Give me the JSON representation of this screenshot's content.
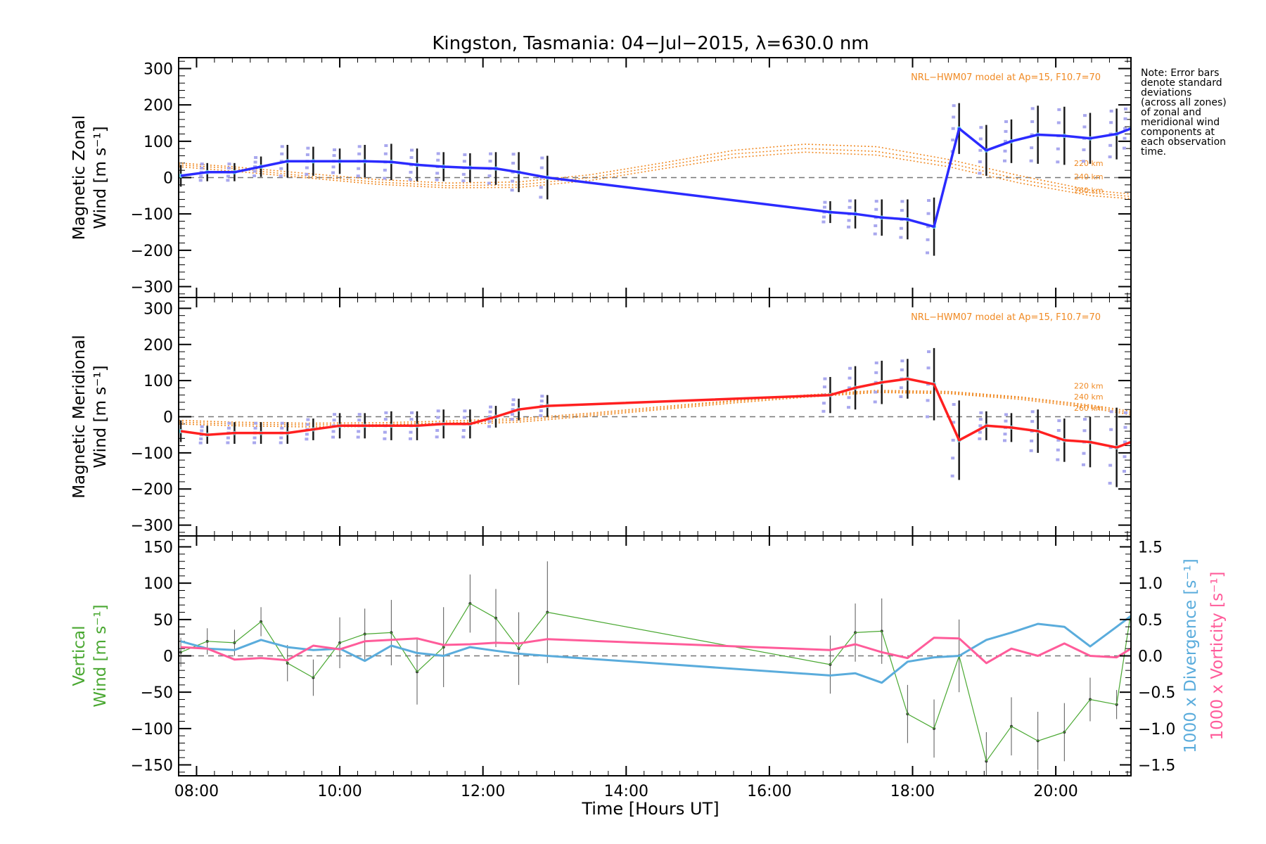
{
  "chart_data": {
    "type": "line",
    "title": "Kingston, Tasmania: 04−Jul−2015, λ=630.0 nm",
    "xlabel": "Time [Hours UT]",
    "x_tick_labels": [
      "08:00",
      "10:00",
      "12:00",
      "14:00",
      "16:00",
      "18:00",
      "20:00"
    ],
    "x_ticks": [
      8,
      10,
      12,
      14,
      16,
      18,
      20
    ],
    "xlim": [
      7.75,
      21.05
    ],
    "note": "Note: Error bars denote standard deviations (across all zones) of zonal and meridional wind components at each observation time.",
    "panels": [
      {
        "id": "zonal",
        "ylabel_line1": "Magnetic Zonal",
        "ylabel_line2": "Wind [m s⁻¹]",
        "ylim": [
          -330,
          330
        ],
        "y_ticks": [
          -300,
          -200,
          -100,
          0,
          100,
          200,
          300
        ],
        "model_label": "NRL−HWM07 model at Ap=15, F10.7=70",
        "model_alt_labels": [
          "220 km",
          "240 km",
          "260 km"
        ],
        "series": [
          {
            "color": "#2b2bff",
            "x": [
              7.78,
              8.15,
              8.53,
              8.9,
              9.27,
              9.63,
              10.0,
              10.35,
              10.72,
              11.08,
              11.45,
              11.82,
              12.18,
              12.5,
              12.9,
              16.85,
              17.2,
              17.57,
              17.93,
              18.3,
              18.65,
              19.03,
              19.38,
              19.75,
              20.12,
              20.48,
              20.85,
              21.05
            ],
            "y": [
              5,
              15,
              15,
              30,
              45,
              45,
              45,
              45,
              43,
              35,
              30,
              27,
              25,
              15,
              0,
              -95,
              -100,
              -110,
              -115,
              -135,
              135,
              75,
              100,
              118,
              115,
              108,
              120,
              135
            ],
            "err": [
              30,
              25,
              25,
              28,
              45,
              40,
              35,
              45,
              50,
              45,
              40,
              40,
              45,
              55,
              60,
              30,
              40,
              50,
              55,
              80,
              70,
              70,
              60,
              80,
              80,
              70,
              70,
              60
            ]
          }
        ],
        "model_curves": [
          {
            "name": "220 km",
            "x": [
              7.75,
              8.5,
              9.5,
              10.5,
              11.5,
              12.5,
              13.5,
              14.5,
              15.5,
              16.5,
              17.5,
              18.5,
              19.5,
              20.5,
              21.05
            ],
            "y": [
              40,
              30,
              12,
              -5,
              -15,
              -12,
              8,
              40,
              75,
              92,
              85,
              50,
              5,
              -35,
              -45
            ]
          },
          {
            "name": "240 km",
            "x": [
              7.75,
              8.5,
              9.5,
              10.5,
              11.5,
              12.5,
              13.5,
              14.5,
              15.5,
              16.5,
              17.5,
              18.5,
              19.5,
              20.5,
              21.05
            ],
            "y": [
              35,
              25,
              5,
              -12,
              -22,
              -20,
              0,
              32,
              65,
              80,
              72,
              40,
              -5,
              -42,
              -52
            ]
          },
          {
            "name": "260 km",
            "x": [
              7.75,
              8.5,
              9.5,
              10.5,
              11.5,
              12.5,
              13.5,
              14.5,
              15.5,
              16.5,
              17.5,
              18.5,
              19.5,
              20.5,
              21.05
            ],
            "y": [
              30,
              18,
              0,
              -18,
              -28,
              -27,
              -8,
              24,
              55,
              70,
              62,
              30,
              -15,
              -50,
              -58
            ]
          }
        ]
      },
      {
        "id": "meridional",
        "ylabel_line1": "Magnetic Meridional",
        "ylabel_line2": "Wind [m s⁻¹]",
        "ylim": [
          -330,
          330
        ],
        "y_ticks": [
          -300,
          -200,
          -100,
          0,
          100,
          200,
          300
        ],
        "model_label": "NRL−HWM07 model at Ap=15, F10.7=70",
        "model_alt_labels": [
          "220 km",
          "240 km",
          "260 km"
        ],
        "series": [
          {
            "color": "#ff2020",
            "x": [
              7.78,
              8.15,
              8.53,
              8.9,
              9.27,
              9.63,
              10.0,
              10.35,
              10.72,
              11.08,
              11.45,
              11.82,
              12.18,
              12.5,
              12.9,
              16.85,
              17.2,
              17.57,
              17.93,
              18.3,
              18.65,
              19.03,
              19.38,
              19.75,
              20.12,
              20.48,
              20.85,
              21.05
            ],
            "y": [
              -40,
              -50,
              -45,
              -45,
              -45,
              -35,
              -25,
              -25,
              -25,
              -25,
              -20,
              -20,
              0,
              20,
              30,
              60,
              80,
              95,
              105,
              90,
              -65,
              -25,
              -30,
              -40,
              -65,
              -70,
              -85,
              -70
            ],
            "err": [
              30,
              25,
              30,
              30,
              30,
              30,
              35,
              35,
              40,
              40,
              40,
              40,
              30,
              30,
              30,
              50,
              60,
              60,
              55,
              100,
              110,
              40,
              40,
              60,
              60,
              70,
              110,
              90
            ]
          }
        ],
        "model_curves": [
          {
            "name": "220 km",
            "x": [
              7.75,
              8.5,
              9.5,
              10.5,
              11.5,
              12.5,
              13.5,
              14.5,
              15.5,
              16.5,
              17.5,
              18.5,
              19.5,
              20.5,
              21.05
            ],
            "y": [
              -10,
              -15,
              -18,
              -17,
              -12,
              -5,
              10,
              28,
              45,
              60,
              73,
              70,
              55,
              32,
              15
            ]
          },
          {
            "name": "240 km",
            "x": [
              7.75,
              8.5,
              9.5,
              10.5,
              11.5,
              12.5,
              13.5,
              14.5,
              15.5,
              16.5,
              17.5,
              18.5,
              19.5,
              20.5,
              21.05
            ],
            "y": [
              -15,
              -20,
              -23,
              -22,
              -17,
              -10,
              6,
              24,
              42,
              57,
              70,
              67,
              52,
              28,
              10
            ]
          },
          {
            "name": "260 km",
            "x": [
              7.75,
              8.5,
              9.5,
              10.5,
              11.5,
              12.5,
              13.5,
              14.5,
              15.5,
              16.5,
              17.5,
              18.5,
              19.5,
              20.5,
              21.05
            ],
            "y": [
              -20,
              -25,
              -28,
              -27,
              -22,
              -15,
              2,
              20,
              38,
              54,
              67,
              64,
              48,
              24,
              5
            ]
          }
        ]
      },
      {
        "id": "vertical",
        "ylabel_line1": "Vertical",
        "ylabel_line2": "Wind [m s⁻¹]",
        "ylim": [
          -165,
          165
        ],
        "y_ticks": [
          -150,
          -100,
          -50,
          0,
          50,
          100,
          150
        ],
        "y2_label_div": "1000 x Divergence [s⁻¹]",
        "y2_label_vort": "1000 x Vorticity [s⁻¹]",
        "y2_lim": [
          -1.65,
          1.65
        ],
        "y2_ticks": [
          -1.5,
          -1.0,
          -0.5,
          0.0,
          0.5,
          1.0,
          1.5
        ],
        "series": [
          {
            "name": "vertical",
            "color": "#4aa832",
            "x": [
              7.78,
              8.15,
              8.53,
              8.9,
              9.27,
              9.63,
              10.0,
              10.35,
              10.72,
              11.08,
              11.45,
              11.82,
              12.18,
              12.5,
              12.9,
              16.85,
              17.2,
              17.57,
              17.93,
              18.3,
              18.65,
              19.03,
              19.38,
              19.75,
              20.12,
              20.48,
              20.85,
              21.05
            ],
            "y": [
              5,
              20,
              18,
              47,
              -10,
              -30,
              18,
              30,
              32,
              -22,
              12,
              72,
              52,
              10,
              60,
              -12,
              32,
              34,
              -80,
              -100,
              0,
              -145,
              -97,
              -117,
              -105,
              -60,
              -67,
              60
            ],
            "err": [
              20,
              18,
              18,
              20,
              25,
              25,
              35,
              35,
              45,
              45,
              55,
              40,
              40,
              50,
              70,
              40,
              40,
              45,
              40,
              40,
              50,
              40,
              40,
              40,
              40,
              30,
              20,
              30
            ]
          },
          {
            "name": "divergence",
            "color": "#5aacdc",
            "axis": "y2",
            "x": [
              7.78,
              8.15,
              8.53,
              8.9,
              9.27,
              9.63,
              10.0,
              10.35,
              10.72,
              11.08,
              11.45,
              11.82,
              12.18,
              12.5,
              12.9,
              16.85,
              17.2,
              17.57,
              17.93,
              18.3,
              18.65,
              19.03,
              19.38,
              19.75,
              20.12,
              20.48,
              20.85,
              21.05
            ],
            "y": [
              0.2,
              0.1,
              0.08,
              0.22,
              0.12,
              0.08,
              0.1,
              -0.07,
              0.14,
              0.04,
              0.0,
              0.12,
              0.07,
              0.03,
              0.0,
              -0.27,
              -0.24,
              -0.37,
              -0.08,
              -0.02,
              0.0,
              0.22,
              0.32,
              0.44,
              0.4,
              0.13,
              0.4,
              0.55
            ]
          },
          {
            "name": "vorticity",
            "color": "#ff5c9a",
            "axis": "y2",
            "x": [
              7.78,
              8.15,
              8.53,
              8.9,
              9.27,
              9.63,
              10.0,
              10.35,
              10.72,
              11.08,
              11.45,
              11.82,
              12.18,
              12.5,
              12.9,
              16.85,
              17.2,
              17.57,
              17.93,
              18.3,
              18.65,
              19.03,
              19.38,
              19.75,
              20.12,
              20.48,
              20.85,
              21.05
            ],
            "y": [
              0.12,
              0.1,
              -0.05,
              -0.03,
              -0.06,
              0.14,
              0.09,
              0.2,
              0.22,
              0.24,
              0.15,
              0.16,
              0.18,
              0.17,
              0.23,
              0.08,
              0.16,
              0.05,
              -0.03,
              0.25,
              0.24,
              -0.1,
              0.1,
              0.0,
              0.17,
              0.0,
              -0.02,
              0.1
            ]
          }
        ]
      }
    ]
  }
}
